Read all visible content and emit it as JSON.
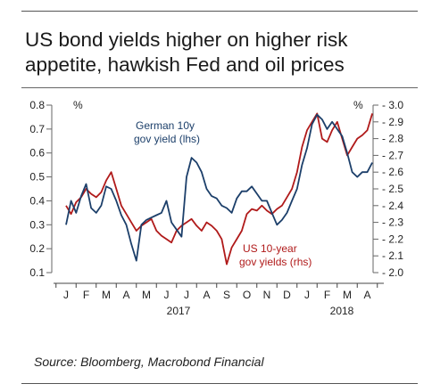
{
  "title": {
    "line1": "US bond yields higher on higher risk",
    "line2": "appetite, hawkish Fed and oil prices"
  },
  "source": "Source: Bloomberg, Macrobond Financial",
  "chart_data": {
    "type": "line",
    "left_unit": "%",
    "right_unit": "%",
    "y_left": {
      "min": 0.1,
      "max": 0.8,
      "ticks": [
        "0.8",
        "0.7",
        "0.6",
        "0.5",
        "0.4",
        "0.3",
        "0.2",
        "0.1"
      ]
    },
    "y_right": {
      "min": 2.0,
      "max": 3.0,
      "ticks": [
        "3.0",
        "2.9",
        "2.8",
        "2.7",
        "2.6",
        "2.5",
        "2.4",
        "2.3",
        "2.2",
        "2.1",
        "2.0"
      ]
    },
    "x_months": [
      "J",
      "F",
      "M",
      "A",
      "M",
      "J",
      "J",
      "A",
      "S",
      "O",
      "N",
      "D",
      "J",
      "F",
      "M",
      "A"
    ],
    "x_years": [
      "2017",
      "2018"
    ],
    "series": [
      {
        "name": "German 10y gov yield (lhs)",
        "axis": "left",
        "color": "#1c3f6a",
        "label_lines": [
          "German 10y",
          "gov yield (lhs)"
        ],
        "x": [
          0.0,
          0.25,
          0.5,
          0.75,
          1.0,
          1.25,
          1.5,
          1.75,
          2.0,
          2.25,
          2.5,
          2.75,
          3.0,
          3.25,
          3.5,
          3.75,
          4.0,
          4.25,
          4.5,
          4.75,
          5.0,
          5.25,
          5.5,
          5.75,
          6.0,
          6.25,
          6.5,
          6.75,
          7.0,
          7.25,
          7.5,
          7.75,
          8.0,
          8.25,
          8.5,
          8.75,
          9.0,
          9.25,
          9.5,
          9.75,
          10.0,
          10.25,
          10.5,
          10.75,
          11.0,
          11.25,
          11.5,
          11.75,
          12.0,
          12.25,
          12.5,
          12.75,
          13.0,
          13.25,
          13.5,
          13.75,
          14.0,
          14.25,
          14.5,
          14.75,
          15.0,
          15.25
        ],
        "y": [
          0.3,
          0.4,
          0.35,
          0.42,
          0.47,
          0.37,
          0.35,
          0.38,
          0.46,
          0.45,
          0.4,
          0.34,
          0.3,
          0.22,
          0.15,
          0.3,
          0.32,
          0.33,
          0.34,
          0.35,
          0.4,
          0.31,
          0.28,
          0.25,
          0.5,
          0.58,
          0.56,
          0.52,
          0.45,
          0.42,
          0.41,
          0.38,
          0.37,
          0.35,
          0.41,
          0.44,
          0.44,
          0.46,
          0.43,
          0.4,
          0.4,
          0.35,
          0.3,
          0.32,
          0.35,
          0.4,
          0.45,
          0.55,
          0.62,
          0.72,
          0.76,
          0.74,
          0.7,
          0.73,
          0.7,
          0.67,
          0.6,
          0.52,
          0.5,
          0.52,
          0.52,
          0.56
        ]
      },
      {
        "name": "US 10-year gov yields (rhs)",
        "axis": "right",
        "color": "#b01a1a",
        "label_lines": [
          "US 10-year",
          "gov yields (rhs)"
        ],
        "x": [
          0.0,
          0.25,
          0.5,
          0.75,
          1.0,
          1.25,
          1.5,
          1.75,
          2.0,
          2.25,
          2.5,
          2.75,
          3.0,
          3.25,
          3.5,
          3.75,
          4.0,
          4.25,
          4.5,
          4.75,
          5.0,
          5.25,
          5.5,
          5.75,
          6.0,
          6.25,
          6.5,
          6.75,
          7.0,
          7.25,
          7.5,
          7.75,
          8.0,
          8.25,
          8.5,
          8.75,
          9.0,
          9.25,
          9.5,
          9.75,
          10.0,
          10.25,
          10.5,
          10.75,
          11.0,
          11.25,
          11.5,
          11.75,
          12.0,
          12.25,
          12.5,
          12.75,
          13.0,
          13.25,
          13.5,
          13.75,
          14.0,
          14.25,
          14.5,
          14.75,
          15.0,
          15.25
        ],
        "y": [
          2.4,
          2.35,
          2.42,
          2.45,
          2.5,
          2.47,
          2.45,
          2.48,
          2.55,
          2.6,
          2.5,
          2.4,
          2.35,
          2.3,
          2.25,
          2.28,
          2.3,
          2.32,
          2.25,
          2.22,
          2.2,
          2.18,
          2.25,
          2.28,
          2.3,
          2.32,
          2.28,
          2.25,
          2.3,
          2.28,
          2.25,
          2.2,
          2.05,
          2.15,
          2.2,
          2.25,
          2.35,
          2.38,
          2.37,
          2.4,
          2.37,
          2.35,
          2.38,
          2.4,
          2.45,
          2.5,
          2.6,
          2.75,
          2.85,
          2.9,
          2.95,
          2.8,
          2.78,
          2.85,
          2.9,
          2.8,
          2.7,
          2.75,
          2.8,
          2.82,
          2.85,
          2.95
        ]
      }
    ]
  }
}
